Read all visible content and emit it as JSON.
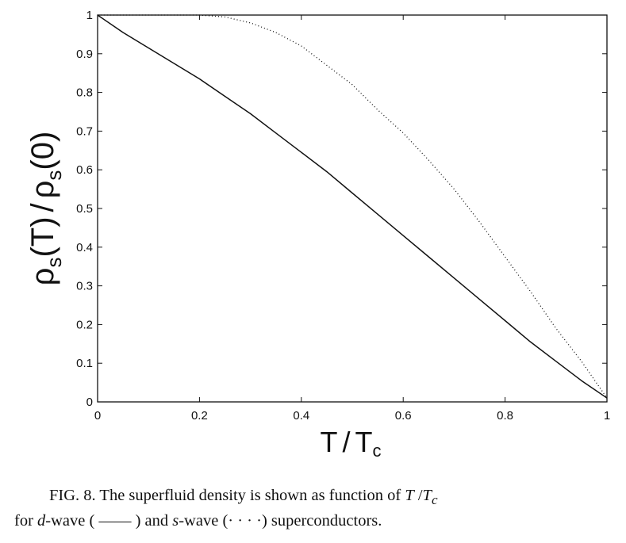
{
  "chart_data": {
    "type": "line",
    "xlabel": {
      "main": "T",
      "sep": "/",
      "sub_main": "T",
      "sub": "c"
    },
    "ylabel": {
      "rho": "ρ",
      "s": "s",
      "arg_t": "(T)",
      "sep": "/",
      "arg_0": "(0)"
    },
    "xlim": [
      0,
      1
    ],
    "ylim": [
      0,
      1
    ],
    "x_ticks": [
      "0",
      "0.2",
      "0.4",
      "0.6",
      "0.8",
      "1"
    ],
    "y_ticks": [
      "0",
      "0.1",
      "0.2",
      "0.3",
      "0.4",
      "0.5",
      "0.6",
      "0.7",
      "0.8",
      "0.9",
      "1"
    ],
    "grid": false,
    "series": [
      {
        "style": "solid",
        "color": "#111111",
        "x": [
          0,
          0.05,
          0.1,
          0.15,
          0.2,
          0.25,
          0.3,
          0.35,
          0.4,
          0.45,
          0.5,
          0.55,
          0.6,
          0.65,
          0.7,
          0.75,
          0.8,
          0.85,
          0.9,
          0.95,
          1.0
        ],
        "y": [
          1.0,
          0.955,
          0.915,
          0.875,
          0.835,
          0.79,
          0.745,
          0.695,
          0.645,
          0.595,
          0.54,
          0.485,
          0.43,
          0.375,
          0.32,
          0.265,
          0.21,
          0.155,
          0.105,
          0.055,
          0.01
        ]
      },
      {
        "style": "dotted",
        "color": "#111111",
        "x": [
          0,
          0.1,
          0.2,
          0.25,
          0.3,
          0.35,
          0.4,
          0.45,
          0.5,
          0.55,
          0.6,
          0.65,
          0.7,
          0.75,
          0.8,
          0.85,
          0.9,
          0.95,
          1.0
        ],
        "y": [
          1.0,
          1.0,
          1.0,
          0.995,
          0.98,
          0.955,
          0.92,
          0.87,
          0.82,
          0.755,
          0.695,
          0.625,
          0.55,
          0.465,
          0.375,
          0.285,
          0.19,
          0.105,
          0.01
        ]
      }
    ]
  },
  "caption": {
    "fig": "FIG. 8.",
    "text1": " The superfluid density is shown as function of ",
    "tvar": "T",
    "slash": " /",
    "tcvar": "T",
    "tcsub": "c",
    "for": "for ",
    "d": "d",
    "dwave": "-wave ( ",
    "solidmark": "——",
    "andtext": " ) and ",
    "s": "s",
    "swave": "-wave (",
    "dotmark": "· · · ·",
    "end": ") superconductors."
  }
}
